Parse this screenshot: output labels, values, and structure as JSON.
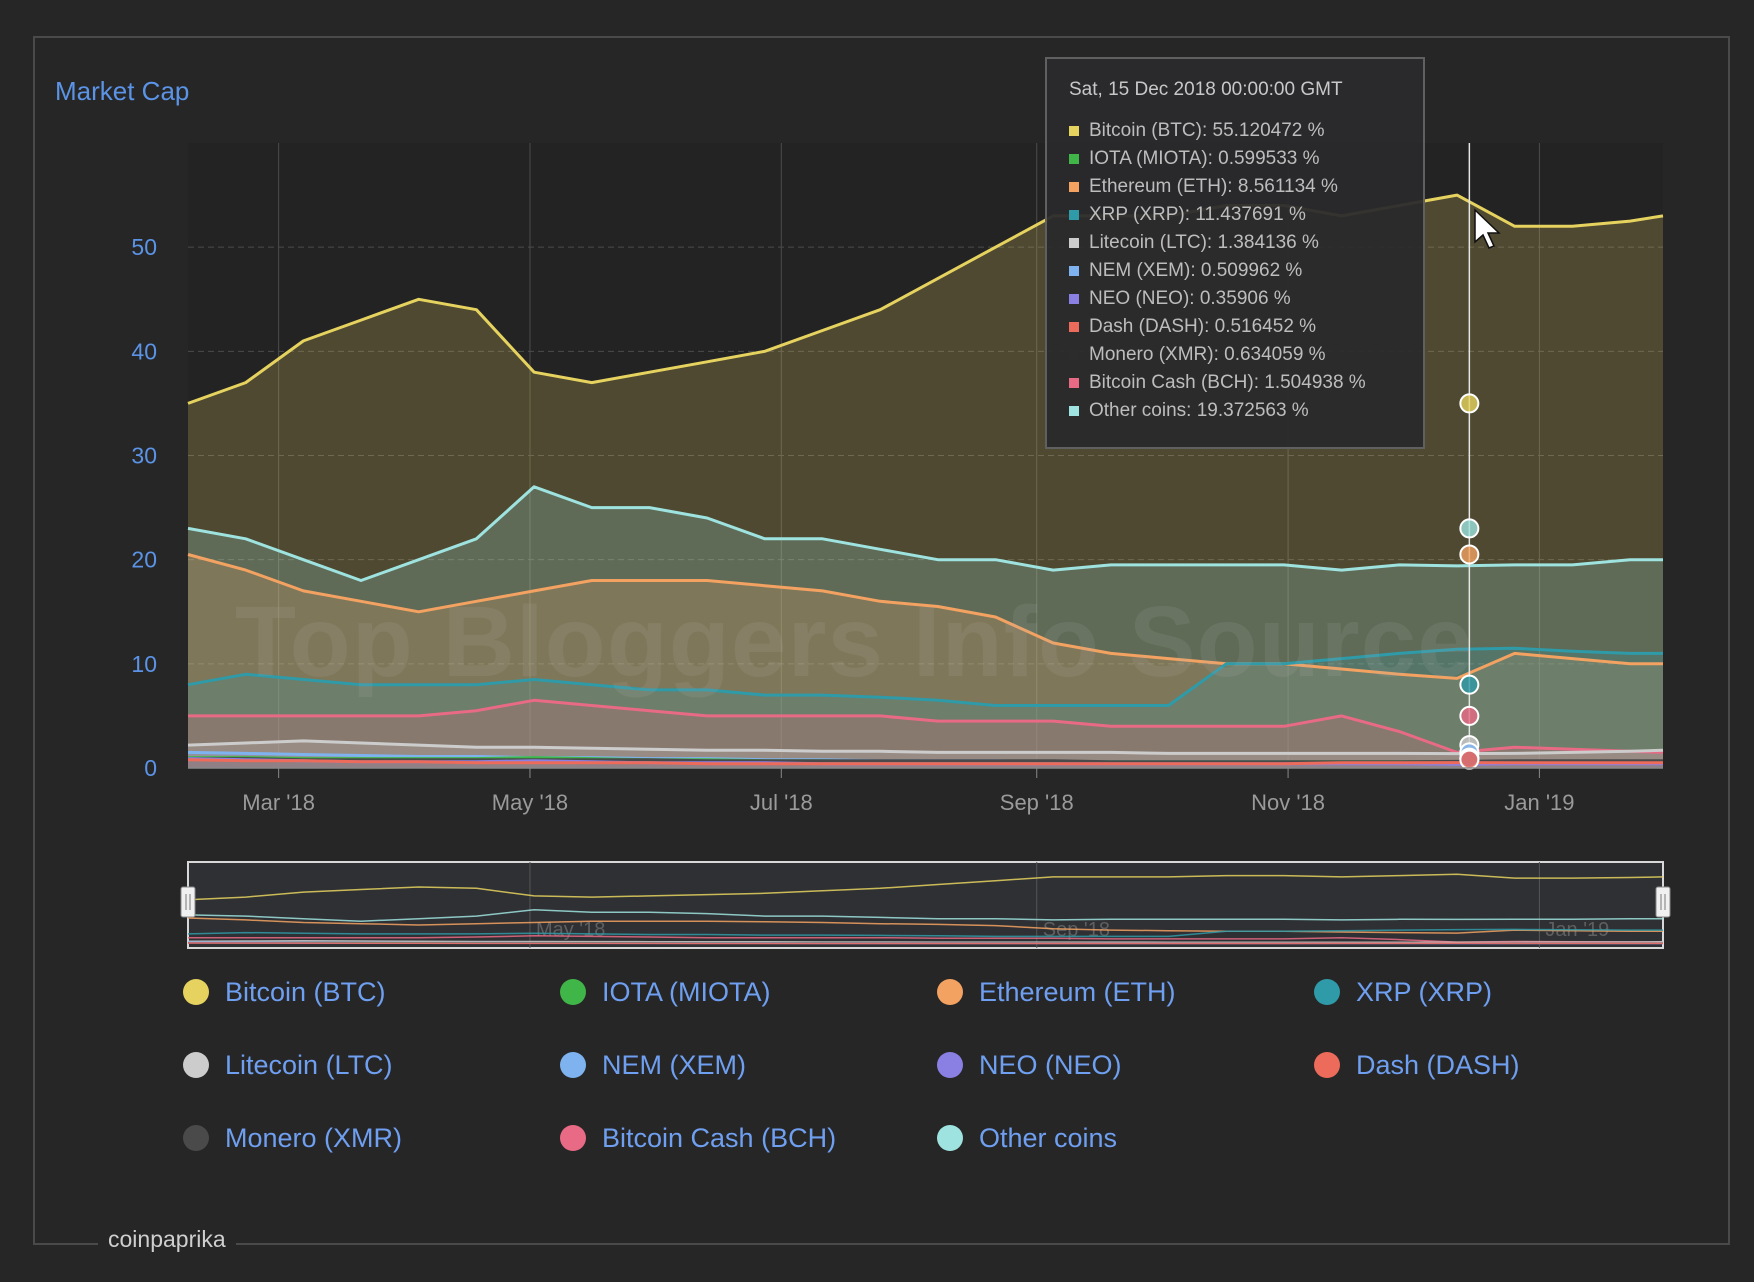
{
  "page": {
    "source_label": "coinpaprika",
    "watermark": "Top Bloggers Info Source"
  },
  "chart_data": {
    "type": "area",
    "title": "Market Cap",
    "xlabel": "",
    "ylabel": "",
    "ylim": [
      0,
      60
    ],
    "yticks": [
      0,
      10,
      20,
      30,
      40,
      50
    ],
    "x_tick_labels": [
      "Mar '18",
      "May '18",
      "Jul '18",
      "Sep '18",
      "Nov '18",
      "Jan '19"
    ],
    "x_tick_dates": [
      "2018-03-01",
      "2018-05-01",
      "2018-07-01",
      "2018-09-01",
      "2018-11-01",
      "2019-01-01"
    ],
    "x_range": [
      "2018-02-07",
      "2019-01-31"
    ],
    "x": [
      "2018-02-07",
      "2018-02-21",
      "2018-03-07",
      "2018-03-21",
      "2018-04-04",
      "2018-04-18",
      "2018-05-02",
      "2018-05-16",
      "2018-05-30",
      "2018-06-13",
      "2018-06-27",
      "2018-07-11",
      "2018-07-25",
      "2018-08-08",
      "2018-08-22",
      "2018-09-05",
      "2018-09-19",
      "2018-10-03",
      "2018-10-17",
      "2018-10-31",
      "2018-11-14",
      "2018-11-28",
      "2018-12-12",
      "2018-12-26",
      "2019-01-09",
      "2019-01-23",
      "2019-01-31"
    ],
    "grid": true,
    "legend_position": "bottom",
    "series": [
      {
        "name": "Bitcoin (BTC)",
        "color": "#e6d35f",
        "values": [
          35,
          37,
          41,
          43,
          45,
          44,
          38,
          37,
          38,
          39,
          40,
          42,
          44,
          47,
          50,
          53,
          53,
          53,
          54,
          54,
          53,
          54,
          55,
          52,
          52,
          52.5,
          53
        ]
      },
      {
        "name": "Ethereum (ETH)",
        "color": "#f3a262",
        "values": [
          20.5,
          19,
          17,
          16,
          15,
          16,
          17,
          18,
          18,
          18,
          17.5,
          17,
          16,
          15.5,
          14.5,
          12,
          11,
          10.5,
          10,
          10,
          9.5,
          9,
          8.6,
          11,
          10.5,
          10,
          10
        ]
      },
      {
        "name": "XRP (XRP)",
        "color": "#2f9aa8",
        "values": [
          8,
          9,
          8.5,
          8,
          8,
          8,
          8.5,
          8,
          7.5,
          7.5,
          7,
          7,
          6.8,
          6.5,
          6,
          6,
          6,
          6,
          10,
          10,
          10.5,
          11,
          11.4,
          11.5,
          11.2,
          11,
          11
        ]
      },
      {
        "name": "Bitcoin Cash (BCH)",
        "color": "#e86a85",
        "values": [
          5,
          5,
          5,
          5,
          5,
          5.5,
          6.5,
          6,
          5.5,
          5,
          5,
          5,
          5,
          4.5,
          4.5,
          4.5,
          4,
          4,
          4,
          4,
          5,
          3.5,
          1.5,
          2,
          1.8,
          1.6,
          1.5
        ]
      },
      {
        "name": "Litecoin (LTC)",
        "color": "#cccccc",
        "values": [
          2.2,
          2.4,
          2.6,
          2.4,
          2.2,
          2,
          2,
          1.9,
          1.8,
          1.7,
          1.7,
          1.6,
          1.6,
          1.5,
          1.5,
          1.5,
          1.5,
          1.4,
          1.4,
          1.4,
          1.4,
          1.4,
          1.38,
          1.4,
          1.5,
          1.6,
          1.7
        ]
      },
      {
        "name": "NEM (XEM)",
        "color": "#7eb3ef",
        "values": [
          1.5,
          1.4,
          1.3,
          1.2,
          1.1,
          1.1,
          1,
          1,
          0.9,
          0.9,
          0.8,
          0.8,
          0.7,
          0.7,
          0.7,
          0.6,
          0.6,
          0.6,
          0.6,
          0.6,
          0.55,
          0.55,
          0.51,
          0.5,
          0.5,
          0.5,
          0.5
        ]
      },
      {
        "name": "IOTA (MIOTA)",
        "color": "#40b548",
        "values": [
          1,
          1,
          0.9,
          0.9,
          0.9,
          0.9,
          1,
          0.9,
          0.8,
          0.8,
          0.7,
          0.7,
          0.6,
          0.6,
          0.6,
          0.6,
          0.6,
          0.6,
          0.6,
          0.6,
          0.6,
          0.6,
          0.6,
          0.6,
          0.6,
          0.6,
          0.6
        ]
      },
      {
        "name": "Monero (XMR)",
        "color": "#4a4a4a",
        "values": [
          0.9,
          0.9,
          0.8,
          0.8,
          0.8,
          0.8,
          0.8,
          0.8,
          0.8,
          0.7,
          0.7,
          0.7,
          0.7,
          0.7,
          0.7,
          0.7,
          0.6,
          0.6,
          0.6,
          0.6,
          0.6,
          0.6,
          0.63,
          0.7,
          0.7,
          0.7,
          0.7
        ]
      },
      {
        "name": "NEO (NEO)",
        "color": "#8a80e4",
        "values": [
          0.9,
          0.8,
          0.7,
          0.6,
          0.6,
          0.6,
          0.7,
          0.6,
          0.5,
          0.5,
          0.5,
          0.4,
          0.4,
          0.4,
          0.4,
          0.4,
          0.4,
          0.4,
          0.4,
          0.4,
          0.4,
          0.4,
          0.36,
          0.4,
          0.4,
          0.4,
          0.4
        ]
      },
      {
        "name": "Dash (DASH)",
        "color": "#ec6b5a",
        "values": [
          0.8,
          0.7,
          0.7,
          0.6,
          0.6,
          0.5,
          0.5,
          0.5,
          0.5,
          0.4,
          0.4,
          0.4,
          0.4,
          0.4,
          0.4,
          0.4,
          0.4,
          0.4,
          0.4,
          0.4,
          0.5,
          0.5,
          0.52,
          0.5,
          0.5,
          0.5,
          0.5
        ]
      },
      {
        "name": "Other coins",
        "color": "#9ee3df",
        "values": [
          23,
          22,
          20,
          18,
          20,
          22,
          27,
          25,
          25,
          24,
          22,
          22,
          21,
          20,
          20,
          19,
          19.5,
          19.5,
          19.5,
          19.5,
          19,
          19.5,
          19.4,
          19.5,
          19.5,
          20,
          20
        ]
      }
    ],
    "legend": [
      {
        "label": "Bitcoin (BTC)",
        "color": "#e6d35f"
      },
      {
        "label": "IOTA (MIOTA)",
        "color": "#40b548"
      },
      {
        "label": "Ethereum (ETH)",
        "color": "#f3a262"
      },
      {
        "label": "XRP (XRP)",
        "color": "#2f9aa8"
      },
      {
        "label": "Litecoin (LTC)",
        "color": "#cccccc"
      },
      {
        "label": "NEM (XEM)",
        "color": "#7eb3ef"
      },
      {
        "label": "NEO (NEO)",
        "color": "#8a80e4"
      },
      {
        "label": "Dash (DASH)",
        "color": "#ec6b5a"
      },
      {
        "label": "Monero (XMR)",
        "color": "#4a4a4a"
      },
      {
        "label": "Bitcoin Cash (BCH)",
        "color": "#e86a85"
      },
      {
        "label": "Other coins",
        "color": "#9ee3df"
      }
    ],
    "tooltip": {
      "date": "2018-12-15",
      "header": "Sat, 15 Dec 2018 00:00:00 GMT",
      "rows": [
        {
          "text": "Bitcoin (BTC): 55.120472 %",
          "color": "#e6d35f"
        },
        {
          "text": "IOTA (MIOTA): 0.599533 %",
          "color": "#40b548"
        },
        {
          "text": "Ethereum (ETH): 8.561134 %",
          "color": "#f3a262"
        },
        {
          "text": "XRP (XRP): 11.437691 %",
          "color": "#2f9aa8"
        },
        {
          "text": "Litecoin (LTC): 1.384136 %",
          "color": "#cccccc"
        },
        {
          "text": "NEM (XEM): 0.509962 %",
          "color": "#7eb3ef"
        },
        {
          "text": "NEO (NEO): 0.35906 %",
          "color": "#8a80e4"
        },
        {
          "text": "Dash (DASH): 0.516452 %",
          "color": "#ec6b5a"
        },
        {
          "text": "Monero (XMR): 0.634059 %",
          "color": "#2c2c2c"
        },
        {
          "text": "Bitcoin Cash (BCH): 1.504938 %",
          "color": "#e86a85"
        },
        {
          "text": "Other coins: 19.372563 %",
          "color": "#9ee3df"
        }
      ]
    },
    "navigator_tick_labels": [
      "May '18",
      "Sep '18",
      "Jan '19"
    ],
    "navigator_tick_dates": [
      "2018-05-01",
      "2018-09-01",
      "2019-01-01"
    ]
  }
}
